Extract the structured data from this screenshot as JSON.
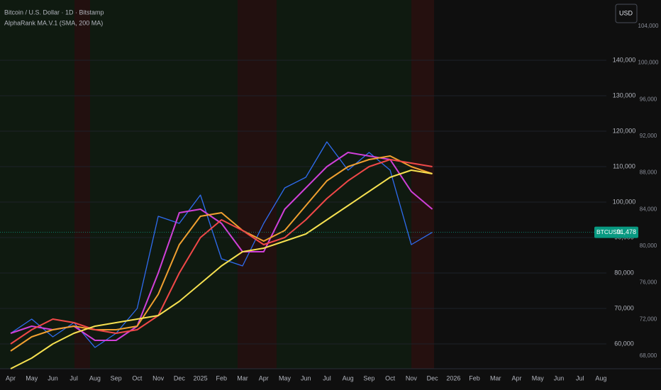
{
  "chart_data": {
    "type": "line",
    "title": "Bitcoin / U.S. Dollar · 1D · Bitstamp",
    "subtitle": "AlphaRank MA.V.1 (SMA, 200 MA)",
    "currency": "USD",
    "categories": [
      "Apr",
      "May",
      "Jun",
      "Jul",
      "Aug",
      "Sep",
      "Oct",
      "Nov",
      "Dec",
      "2025",
      "Feb",
      "Mar",
      "Apr",
      "May",
      "Jun",
      "Jul",
      "Aug",
      "Sep",
      "Oct",
      "Nov",
      "Dec",
      "2026",
      "Feb",
      "Mar",
      "Apr",
      "May",
      "Jun",
      "Jul",
      "Aug"
    ],
    "series": [
      {
        "color": "#2f6cf0",
        "values": [
          63000,
          67000,
          62000,
          66000,
          59000,
          63000,
          70000,
          96000,
          94000,
          102000,
          84000,
          82000,
          94000,
          104000,
          107000,
          117000,
          109000,
          114000,
          109000,
          88000,
          91478,
          null,
          null,
          null,
          null,
          null,
          null,
          null,
          null
        ]
      },
      {
        "color": "#d040d8",
        "values": [
          63000,
          65000,
          64000,
          65000,
          61000,
          61000,
          65000,
          80000,
          97000,
          98000,
          94000,
          86000,
          86000,
          98000,
          104000,
          110000,
          114000,
          113000,
          112000,
          103000,
          98000,
          null,
          null,
          null,
          null,
          null,
          null,
          null,
          null
        ]
      },
      {
        "color": "#f0a030",
        "values": [
          58000,
          62000,
          64000,
          65000,
          64000,
          64000,
          65000,
          74000,
          88000,
          96000,
          97000,
          92000,
          89000,
          92000,
          99000,
          106000,
          110000,
          112000,
          113000,
          110000,
          108000,
          null,
          null,
          null,
          null,
          null,
          null,
          null,
          null
        ]
      },
      {
        "color": "#f04848",
        "values": [
          60000,
          64000,
          67000,
          66000,
          64000,
          63000,
          64000,
          68000,
          80000,
          90000,
          95000,
          92000,
          88000,
          90000,
          95000,
          101000,
          106000,
          110000,
          112000,
          111000,
          110000,
          null,
          null,
          null,
          null,
          null,
          null,
          null,
          null
        ]
      },
      {
        "color": "#f5e050",
        "values": [
          53000,
          56000,
          60000,
          63000,
          65000,
          66000,
          67000,
          68000,
          72000,
          77000,
          82000,
          86000,
          87000,
          89000,
          91000,
          95000,
          99000,
          103000,
          107000,
          109000,
          108000,
          null,
          null,
          null,
          null,
          null,
          null,
          null,
          null
        ]
      }
    ],
    "ylim": [
      53000,
      157000
    ],
    "yticks": [
      {
        "value": 60000,
        "label": "60,000"
      },
      {
        "value": 70000,
        "label": "70,000"
      },
      {
        "value": 80000,
        "label": "80,000"
      },
      {
        "value": 90000,
        "label": "90,000"
      },
      {
        "value": 100000,
        "label": "100,000"
      },
      {
        "value": 110000,
        "label": "110,000"
      },
      {
        "value": 120000,
        "label": "120,000"
      },
      {
        "value": 130000,
        "label": "130,000"
      },
      {
        "value": 140000,
        "label": "140,000"
      }
    ],
    "y2lim": [
      66600,
      106850
    ],
    "y2ticks": [
      {
        "value": 68000,
        "label": "68,000"
      },
      {
        "value": 72000,
        "label": "72,000"
      },
      {
        "value": 76000,
        "label": "76,000"
      },
      {
        "value": 80000,
        "label": "80,000"
      },
      {
        "value": 84000,
        "label": "84,000"
      },
      {
        "value": 88000,
        "label": "88,000"
      },
      {
        "value": 92000,
        "label": "92,000"
      },
      {
        "value": 96000,
        "label": "96,000"
      },
      {
        "value": 100000,
        "label": "100,000"
      },
      {
        "value": 104000,
        "label": "104,000"
      }
    ],
    "grid": true,
    "price_tag": {
      "symbol": "BTCUSD",
      "value": 91478,
      "label": "91,478"
    }
  }
}
